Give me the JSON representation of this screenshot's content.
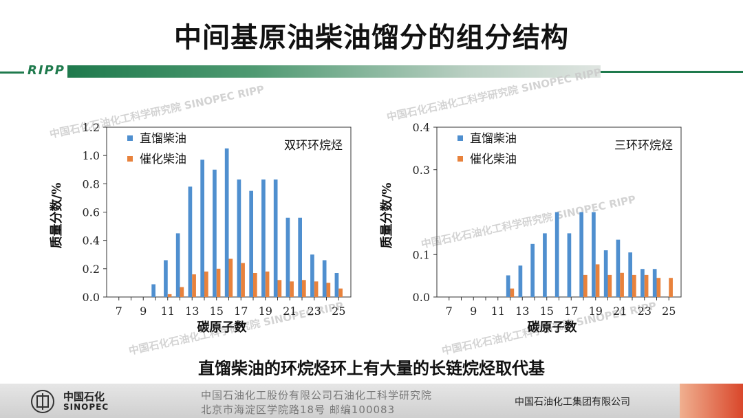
{
  "page": {
    "title": "中间基原油柴油馏分的组分结构",
    "ripp_label": "RIPP",
    "conclusion": "直馏柴油的环烷烃环上有大量的长链烷烃取代基"
  },
  "watermarks": [
    "中国石化石油化工科学研究院 SINOPEC RIPP",
    "中国石化石油化工科学研究院 SINOPEC RIPP",
    "中国石化石油化工科学研究院 SINOPEC RIPP",
    "中国石化石油化工科学研究院 SINOPEC RIPP",
    "中国石化石油化工科学研究院 SINOPEC RIPP"
  ],
  "footer": {
    "logo_cn": "中国石化",
    "logo_en": "SINOPEC",
    "line1": "中国石油化工股份有限公司石油化工科学研究院",
    "line2": "北京市海淀区学院路18号  邮编100083",
    "company": "中国石油化工集团有限公司"
  },
  "colors": {
    "series1": "#4f8fcf",
    "series2": "#e8823c",
    "brand_green": "#1f7a4d"
  },
  "chart_data": [
    {
      "type": "bar",
      "annotation": "双环环烷烃",
      "xlabel": "碳原子数",
      "ylabel": "质量分数/%",
      "ylim": [
        0,
        1.2
      ],
      "yticks": [
        "0.0",
        "0.2",
        "0.4",
        "0.6",
        "0.8",
        "1.0",
        "1.2"
      ],
      "x": [
        7,
        8,
        9,
        10,
        11,
        12,
        13,
        14,
        15,
        16,
        17,
        18,
        19,
        20,
        21,
        22,
        23,
        24,
        25
      ],
      "xticks": [
        "7",
        "9",
        "11",
        "13",
        "15",
        "17",
        "19",
        "21",
        "23",
        "25"
      ],
      "legend_position": "top-left",
      "series": [
        {
          "name": "直馏柴油",
          "values": [
            0,
            0,
            0,
            0.09,
            0.26,
            0.45,
            0.78,
            0.97,
            0.9,
            1.05,
            0.83,
            0.75,
            0.83,
            0.83,
            0.56,
            0.56,
            0.3,
            0.26,
            0.17
          ]
        },
        {
          "name": "催化柴油",
          "values": [
            0,
            0,
            0,
            0,
            0.02,
            0.07,
            0.16,
            0.18,
            0.2,
            0.27,
            0.24,
            0.17,
            0.18,
            0.12,
            0.11,
            0.12,
            0.11,
            0.1,
            0.06
          ]
        }
      ]
    },
    {
      "type": "bar",
      "annotation": "三环环烷烃",
      "xlabel": "碳原子数",
      "ylabel": "质量分数/%",
      "ylim": [
        0,
        0.4
      ],
      "yticks": [
        "0.0",
        "0.1",
        "0.3",
        "0.4"
      ],
      "ytick_values": [
        0,
        0.1,
        0.3,
        0.4
      ],
      "x": [
        7,
        8,
        9,
        10,
        11,
        12,
        13,
        14,
        15,
        16,
        17,
        18,
        19,
        20,
        21,
        22,
        23,
        24,
        25
      ],
      "xticks": [
        "7",
        "9",
        "11",
        "13",
        "15",
        "17",
        "19",
        "21",
        "23",
        "25"
      ],
      "legend_position": "top-left",
      "series": [
        {
          "name": "直馏柴油",
          "values": [
            0,
            0,
            0,
            0,
            0,
            0.051,
            0.074,
            0.125,
            0.15,
            0.2,
            0.15,
            0.2,
            0.2,
            0.11,
            0.135,
            0.105,
            0.066,
            0.066,
            0
          ]
        },
        {
          "name": "催化柴油",
          "values": [
            0,
            0,
            0,
            0,
            0,
            0.02,
            0,
            0,
            0,
            0,
            0,
            0.052,
            0.077,
            0.052,
            0.057,
            0.052,
            0.052,
            0.045,
            0.045
          ]
        }
      ]
    }
  ]
}
